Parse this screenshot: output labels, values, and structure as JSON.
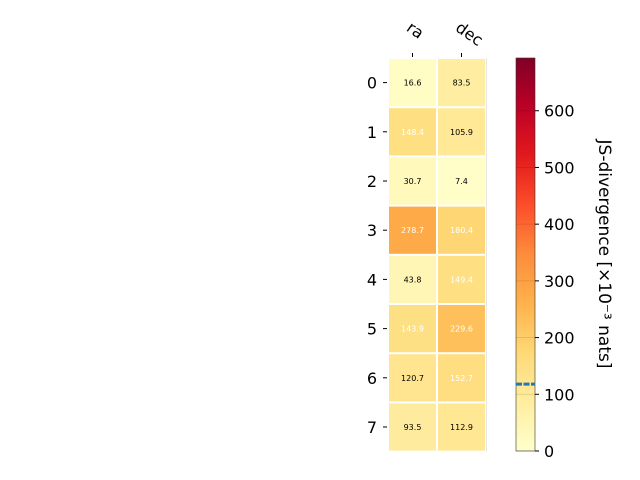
{
  "chart_data": {
    "type": "heatmap",
    "columns": [
      "ra",
      "dec"
    ],
    "rows": [
      "0",
      "1",
      "2",
      "3",
      "4",
      "5",
      "6",
      "7"
    ],
    "values": [
      [
        16.6,
        83.5
      ],
      [
        148.4,
        105.9
      ],
      [
        30.7,
        7.4
      ],
      [
        278.7,
        180.4
      ],
      [
        43.8,
        149.4
      ],
      [
        143.9,
        229.6
      ],
      [
        120.7,
        152.7
      ],
      [
        93.5,
        112.9
      ]
    ],
    "value_labels": [
      [
        "16.6",
        "83.5"
      ],
      [
        "148.4",
        "105.9"
      ],
      [
        "30.7",
        "7.4"
      ],
      [
        "278.7",
        "180.4"
      ],
      [
        "43.8",
        "149.4"
      ],
      [
        "143.9",
        "229.6"
      ],
      [
        "120.7",
        "152.7"
      ],
      [
        "93.5",
        "112.9"
      ]
    ],
    "colorbar": {
      "label": "JS-divergence [×10⁻³ nats]",
      "ticks": [
        0,
        100,
        200,
        300,
        400,
        500,
        600
      ],
      "range": [
        0,
        693
      ],
      "colormap": "YlOrRd",
      "marker_value": 118
    },
    "colors": {
      "marker": "#1f77b4",
      "text_dark": "#000000",
      "text_light": "#ffffff"
    }
  }
}
